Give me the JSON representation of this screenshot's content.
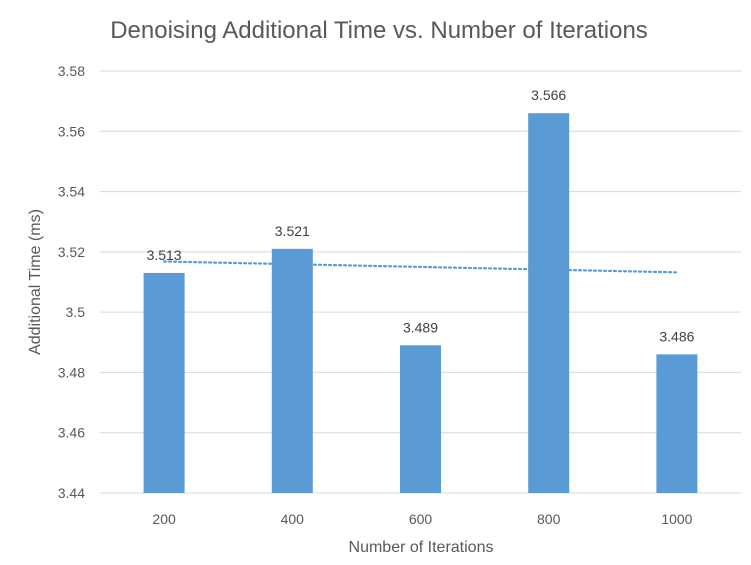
{
  "chart_data": {
    "type": "bar",
    "title": "Denoising Additional Time vs. Number of Iterations",
    "xlabel": "Number of Iterations",
    "ylabel": "Additional Time (ms)",
    "categories": [
      "200",
      "400",
      "600",
      "800",
      "1000"
    ],
    "values": [
      3.513,
      3.521,
      3.489,
      3.566,
      3.486
    ],
    "value_labels": [
      "3.513",
      "3.521",
      "3.489",
      "3.566",
      "3.486"
    ],
    "ylim": [
      3.44,
      3.58
    ],
    "yticks": [
      3.44,
      3.46,
      3.48,
      3.5,
      3.52,
      3.54,
      3.56,
      3.58
    ],
    "ytick_labels": [
      "3.44",
      "3.46",
      "3.48",
      "3.5",
      "3.52",
      "3.54",
      "3.56",
      "3.58"
    ],
    "grid": true,
    "trendline": {
      "type": "linear",
      "style": "dotted"
    },
    "colors": {
      "bar": "#5B9BD5",
      "trendline": "#5B9BD5",
      "grid": "#D9D9D9",
      "text": "#595959"
    }
  }
}
